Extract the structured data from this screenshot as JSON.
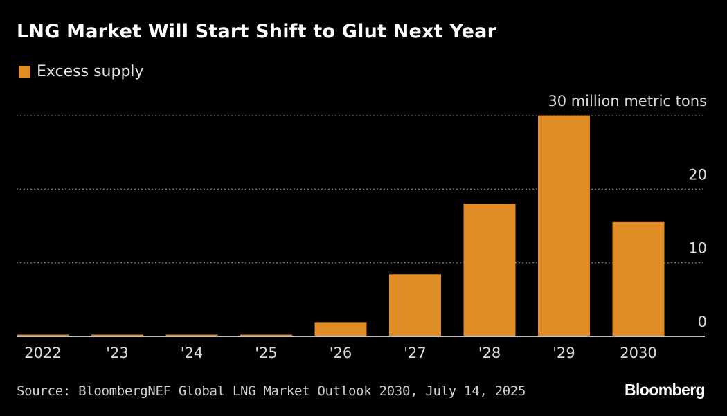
{
  "title": "LNG Market Will Start Shift to Glut Next Year",
  "legend": {
    "label": "Excess supply"
  },
  "source": "Source: BloombergNEF Global LNG Market Outlook 2030, July 14, 2025",
  "brand": "Bloomberg",
  "colors": {
    "bar": "#e08d27",
    "background": "#000000",
    "grid": "#777777",
    "baseline": "#ffffff"
  },
  "chart_data": {
    "type": "bar",
    "categories": [
      "2022",
      "'23",
      "'24",
      "'25",
      "'26",
      "'27",
      "'28",
      "'29",
      "2030"
    ],
    "series": [
      {
        "name": "Excess supply",
        "values": [
          0,
          0,
          0,
          0,
          1.7,
          8.2,
          17.8,
          29.8,
          15.3
        ]
      }
    ],
    "ylim": [
      0,
      30
    ],
    "yticks": [
      0,
      10,
      20,
      30
    ],
    "ytick_labels": [
      "0",
      "10",
      "20",
      "30 million metric tons"
    ],
    "grid": true,
    "legend_position": "top-left"
  }
}
